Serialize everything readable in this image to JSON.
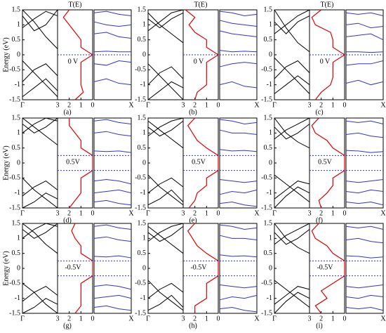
{
  "chart_data": [
    {
      "type": "band-transmission",
      "title": "T(E)",
      "ylabel": "Energy (eV)",
      "label": "(a)",
      "bias": "0 V",
      "bias_levels": [
        0
      ],
      "k_left": "Γ",
      "k_right": "X",
      "ylim": [
        -1.5,
        1.5
      ],
      "yticks": [
        -1.5,
        -1,
        -0.5,
        0,
        0.5,
        1,
        1.5
      ],
      "xlim": [
        3,
        0
      ],
      "xticks": [
        3,
        2,
        1,
        0
      ],
      "left_bands": [
        [
          1.5,
          1.1,
          0.6,
          0.2
        ],
        [
          0.9,
          1.2,
          1.45,
          1.3
        ],
        [
          -0.2,
          -0.6,
          -1.0,
          -1.4
        ],
        [
          -0.9,
          -0.5,
          -0.3,
          -0.7
        ],
        [
          -1.4,
          -1.1,
          -0.8,
          -1.2
        ],
        [
          1.3,
          0.8,
          1.0,
          1.5
        ]
      ],
      "energy": [
        -1.5,
        -1.25,
        -1,
        -0.75,
        -0.5,
        -0.25,
        0,
        0.25,
        0.5,
        0.75,
        1,
        1.25,
        1.5
      ],
      "transmission": [
        1.5,
        0.8,
        1,
        1,
        1,
        1,
        0,
        1,
        1,
        1.5,
        2,
        2.5,
        2
      ],
      "right_bands": [
        [
          1.4,
          1.45,
          1.35,
          1.3
        ],
        [
          1.1,
          1.0,
          0.95,
          1.0
        ],
        [
          0.7,
          0.75,
          0.6,
          0.55
        ],
        [
          0.1,
          0.12,
          0.1,
          0.1
        ],
        [
          -0.3,
          -0.35,
          -0.2,
          -0.25
        ],
        [
          -0.9,
          -0.8,
          -0.95,
          -1.0
        ]
      ]
    },
    {
      "type": "band-transmission",
      "title": "T(E)",
      "label": "(b)",
      "bias": "0 V",
      "bias_levels": [
        0
      ],
      "k_left": "Γ",
      "k_right": "X",
      "ylim": [
        -1.5,
        1.5
      ],
      "yticks": [
        -1.5,
        -1,
        -0.5,
        0,
        0.5,
        1,
        1.5
      ],
      "xlim": [
        3,
        0
      ],
      "xticks": [
        3,
        2,
        1,
        0
      ],
      "left_bands": [
        [
          1.4,
          1.0,
          0.7,
          0.4
        ],
        [
          0.8,
          1.1,
          1.4,
          1.5
        ],
        [
          -0.3,
          -0.7,
          -1.1,
          -1.5
        ],
        [
          -1.0,
          -0.6,
          -0.4,
          -0.8
        ],
        [
          -1.5,
          -1.2,
          -0.9,
          -1.1
        ],
        [
          1.2,
          0.9,
          1.2,
          1.4
        ]
      ],
      "energy": [
        -1.5,
        -1.25,
        -1,
        -0.75,
        -0.5,
        -0.25,
        0,
        0.25,
        0.5,
        0.75,
        1,
        1.25,
        1.5
      ],
      "transmission": [
        2,
        1.8,
        1,
        1,
        1,
        1,
        0,
        1,
        1,
        2,
        2.5,
        2,
        2.8
      ],
      "right_bands": [
        [
          1.45,
          1.4,
          1.3,
          1.35
        ],
        [
          1.15,
          1.05,
          1.0,
          0.95
        ],
        [
          0.8,
          0.7,
          0.65,
          0.6
        ],
        [
          0.15,
          0.1,
          0.12,
          0.1
        ],
        [
          -0.4,
          -0.3,
          -0.25,
          -0.3
        ],
        [
          -1.0,
          -0.9,
          -1.05,
          -1.1
        ]
      ]
    },
    {
      "type": "band-transmission",
      "title": "T(E)",
      "label": "(c)",
      "bias": "0 V",
      "bias_levels": [
        0
      ],
      "k_left": "Γ",
      "k_right": "X",
      "ylim": [
        -1.5,
        1.5
      ],
      "yticks": [
        -1.5,
        -1,
        -0.5,
        0,
        0.5,
        1,
        1.5
      ],
      "xlim": [
        3,
        0
      ],
      "xticks": [
        3,
        2,
        1,
        0
      ],
      "left_bands": [
        [
          1.5,
          0.9,
          0.4,
          0.1
        ],
        [
          0.7,
          1.0,
          1.3,
          1.5
        ],
        [
          -0.1,
          -0.5,
          -0.9,
          -1.3
        ],
        [
          -0.8,
          -0.4,
          -0.2,
          -0.6
        ],
        [
          -1.3,
          -1.0,
          -0.7,
          -1.0
        ],
        [
          1.1,
          0.7,
          1.1,
          1.3
        ]
      ],
      "energy": [
        -1.5,
        -1.25,
        -1,
        -0.75,
        -0.5,
        -0.25,
        0,
        0.25,
        0.5,
        0.75,
        1,
        1.25,
        1.5
      ],
      "transmission": [
        2.5,
        2,
        1.2,
        1,
        1,
        1,
        0,
        1,
        1,
        1.2,
        2.5,
        2.8,
        2
      ],
      "right_bands": [
        [
          1.4,
          1.35,
          1.4,
          1.3
        ],
        [
          1.0,
          1.05,
          0.9,
          0.95
        ],
        [
          0.6,
          0.65,
          0.7,
          0.5
        ],
        [
          0.1,
          0.1,
          0.08,
          0.1
        ],
        [
          -0.35,
          -0.3,
          -0.3,
          -0.2
        ],
        [
          -0.95,
          -0.85,
          -1.0,
          -0.9
        ]
      ]
    },
    {
      "type": "band-transmission",
      "ylabel": "Energy (eV)",
      "label": "(d)",
      "bias": "0.5V",
      "bias_levels": [
        0.25,
        -0.25
      ],
      "k_left": "Γ",
      "k_right": "X",
      "ylim": [
        -1.5,
        1.5
      ],
      "yticks": [
        -1.5,
        -1,
        -0.5,
        0,
        0.5,
        1,
        1.5
      ],
      "xlim": [
        3,
        0
      ],
      "xticks": [
        3,
        2,
        1,
        0
      ],
      "left_bands": [
        [
          1.5,
          1.2,
          0.9,
          0.6
        ],
        [
          1.0,
          1.3,
          1.5,
          1.4
        ],
        [
          -0.5,
          -0.9,
          -1.2,
          -1.5
        ],
        [
          -1.1,
          -0.8,
          -0.6,
          -0.9
        ],
        [
          -1.5,
          -1.3,
          -1.0,
          -1.2
        ],
        [
          1.3,
          1.0,
          1.2,
          1.5
        ]
      ],
      "energy": [
        -1.5,
        -1.25,
        -1,
        -0.75,
        -0.5,
        -0.25,
        0,
        0.25,
        0.5,
        0.75,
        1,
        1.25,
        1.5
      ],
      "transmission": [
        2,
        1.5,
        1,
        1,
        1,
        0,
        0,
        0,
        1,
        1,
        1.5,
        2,
        2
      ],
      "right_bands": [
        [
          1.4,
          1.45,
          1.35,
          1.3
        ],
        [
          1.0,
          1.05,
          0.95,
          0.9
        ],
        [
          0.4,
          0.38,
          0.4,
          0.35
        ],
        [
          -0.6,
          -0.55,
          -0.6,
          -0.7
        ],
        [
          -1.0,
          -0.95,
          -0.9,
          -1.0
        ],
        [
          -1.3,
          -1.25,
          -1.35,
          -1.4
        ]
      ]
    },
    {
      "type": "band-transmission",
      "label": "(e)",
      "bias": "0.5V",
      "bias_levels": [
        0.25,
        -0.25
      ],
      "k_left": "Γ",
      "k_right": "X",
      "ylim": [
        -1.5,
        1.5
      ],
      "yticks": [
        -1.5,
        -1,
        -0.5,
        0,
        0.5,
        1,
        1.5
      ],
      "xlim": [
        3,
        0
      ],
      "xticks": [
        3,
        2,
        1,
        0
      ],
      "left_bands": [
        [
          1.4,
          1.1,
          0.8,
          0.5
        ],
        [
          0.9,
          1.2,
          1.4,
          1.5
        ],
        [
          -0.4,
          -0.8,
          -1.1,
          -1.4
        ],
        [
          -1.0,
          -0.7,
          -0.5,
          -0.8
        ],
        [
          -1.4,
          -1.2,
          -0.9,
          -1.3
        ],
        [
          1.2,
          0.9,
          1.1,
          1.4
        ]
      ],
      "energy": [
        -1.5,
        -1.25,
        -1,
        -0.75,
        -0.5,
        -0.25,
        0,
        0.25,
        0.5,
        0.75,
        1,
        1.25,
        1.5
      ],
      "transmission": [
        2.5,
        2,
        1.8,
        1,
        1,
        0,
        0,
        0,
        1,
        1.8,
        2.2,
        2.6,
        2
      ],
      "right_bands": [
        [
          1.45,
          1.4,
          1.3,
          1.35
        ],
        [
          1.1,
          1.0,
          1.0,
          0.95
        ],
        [
          0.45,
          0.4,
          0.42,
          0.38
        ],
        [
          -0.55,
          -0.6,
          -0.65,
          -0.6
        ],
        [
          -1.05,
          -0.95,
          -1.0,
          -0.9
        ],
        [
          -1.35,
          -1.3,
          -1.4,
          -1.45
        ]
      ]
    },
    {
      "type": "band-transmission",
      "label": "(f)",
      "bias": "0.5V",
      "bias_levels": [
        0.25,
        -0.25
      ],
      "k_left": "Γ",
      "k_right": "X",
      "ylim": [
        -1.5,
        1.5
      ],
      "yticks": [
        -1.5,
        -1,
        -0.5,
        0,
        0.5,
        1,
        1.5
      ],
      "xlim": [
        3,
        0
      ],
      "xticks": [
        3,
        2,
        1,
        0
      ],
      "left_bands": [
        [
          1.5,
          1.0,
          0.7,
          0.5
        ],
        [
          0.8,
          1.1,
          1.3,
          1.5
        ],
        [
          -0.4,
          -0.7,
          -1.0,
          -1.3
        ],
        [
          -1.2,
          -0.9,
          -0.6,
          -0.7
        ],
        [
          -1.5,
          -1.1,
          -0.8,
          -1.0
        ],
        [
          1.2,
          0.8,
          1.0,
          1.3
        ]
      ],
      "energy": [
        -1.5,
        -1.25,
        -1,
        -0.75,
        -0.5,
        -0.25,
        0,
        0.25,
        0.5,
        0.75,
        1,
        1.25,
        1.5
      ],
      "transmission": [
        2,
        2.2,
        1.5,
        1,
        1,
        0,
        0,
        0,
        1,
        1.5,
        2.5,
        2.8,
        2.2
      ],
      "right_bands": [
        [
          1.4,
          1.35,
          1.4,
          1.3
        ],
        [
          0.95,
          1.0,
          0.9,
          0.85
        ],
        [
          0.42,
          0.4,
          0.35,
          0.38
        ],
        [
          -0.6,
          -0.65,
          -0.6,
          -0.55
        ],
        [
          -0.95,
          -1.0,
          -0.9,
          -0.95
        ],
        [
          -1.3,
          -1.35,
          -1.3,
          -1.4
        ]
      ]
    },
    {
      "type": "band-transmission",
      "ylabel": "Energy (eV)",
      "label": "(g)",
      "bias": "-0.5V",
      "bias_levels": [
        0.25,
        -0.25
      ],
      "k_left": "Γ",
      "k_right": "X",
      "ylim": [
        -1.5,
        1.5
      ],
      "yticks": [
        -1.5,
        -1,
        -0.5,
        0,
        0.5,
        1,
        1.5
      ],
      "xlim": [
        3,
        0
      ],
      "xticks": [
        3,
        2,
        1,
        0
      ],
      "left_bands": [
        [
          1.5,
          1.2,
          0.8,
          0.5
        ],
        [
          1.0,
          1.3,
          1.5,
          1.4
        ],
        [
          -0.5,
          -0.8,
          -1.2,
          -1.5
        ],
        [
          -1.1,
          -0.8,
          -0.6,
          -0.9
        ],
        [
          -1.5,
          -1.3,
          -1.0,
          -1.2
        ],
        [
          1.3,
          1.0,
          1.2,
          1.5
        ]
      ],
      "energy": [
        -1.5,
        -1.25,
        -1,
        -0.75,
        -0.5,
        -0.25,
        0,
        0.25,
        0.5,
        0.75,
        1,
        1.25,
        1.5
      ],
      "transmission": [
        1.5,
        1,
        1,
        1,
        1,
        0,
        0,
        0,
        1,
        1,
        1.5,
        1.8,
        1.5
      ],
      "right_bands": [
        [
          1.4,
          1.45,
          1.35,
          1.3
        ],
        [
          1.0,
          1.05,
          0.95,
          0.9
        ],
        [
          0.4,
          0.38,
          0.42,
          0.35
        ],
        [
          -0.6,
          -0.55,
          -0.6,
          -0.7
        ],
        [
          -1.0,
          -0.95,
          -0.9,
          -1.0
        ],
        [
          -1.3,
          -1.25,
          -1.35,
          -1.4
        ]
      ]
    },
    {
      "type": "band-transmission",
      "label": "(h)",
      "bias": "-0.5V",
      "bias_levels": [
        0.25,
        -0.25
      ],
      "k_left": "Γ",
      "k_right": "X",
      "ylim": [
        -1.5,
        1.5
      ],
      "yticks": [
        -1.5,
        -1,
        -0.5,
        0,
        0.5,
        1,
        1.5
      ],
      "xlim": [
        3,
        0
      ],
      "xticks": [
        3,
        2,
        1,
        0
      ],
      "left_bands": [
        [
          1.4,
          1.1,
          0.8,
          0.5
        ],
        [
          0.9,
          1.2,
          1.4,
          1.5
        ],
        [
          -0.4,
          -0.8,
          -1.1,
          -1.4
        ],
        [
          -1.0,
          -0.7,
          -0.5,
          -0.8
        ],
        [
          -1.4,
          -1.2,
          -0.9,
          -1.3
        ],
        [
          1.2,
          0.9,
          1.1,
          1.4
        ]
      ],
      "energy": [
        -1.5,
        -1.25,
        -1,
        -0.75,
        -0.5,
        -0.25,
        0,
        0.25,
        0.5,
        0.75,
        1,
        1.25,
        1.5
      ],
      "transmission": [
        2,
        2,
        1,
        1,
        1,
        0,
        0,
        0,
        1,
        1.8,
        2.2,
        2.6,
        2
      ],
      "right_bands": [
        [
          1.45,
          1.4,
          1.3,
          1.35
        ],
        [
          1.1,
          1.0,
          1.0,
          0.95
        ],
        [
          0.45,
          0.4,
          0.42,
          0.38
        ],
        [
          -0.55,
          -0.6,
          -0.65,
          -0.6
        ],
        [
          -1.05,
          -0.95,
          -1.0,
          -0.9
        ],
        [
          -1.35,
          -1.3,
          -1.4,
          -1.45
        ]
      ]
    },
    {
      "type": "band-transmission",
      "label": "(i)",
      "bias": "-0.5V",
      "bias_levels": [
        0.25,
        -0.25
      ],
      "k_left": "Γ",
      "k_right": "X",
      "ylim": [
        -1.5,
        1.5
      ],
      "yticks": [
        -1.5,
        -1,
        -0.5,
        0,
        0.5,
        1,
        1.5
      ],
      "xlim": [
        3,
        0
      ],
      "xticks": [
        3,
        2,
        1,
        0
      ],
      "left_bands": [
        [
          1.5,
          1.0,
          0.7,
          0.5
        ],
        [
          0.8,
          1.1,
          1.3,
          1.5
        ],
        [
          -0.4,
          -0.7,
          -1.0,
          -1.3
        ],
        [
          -1.2,
          -0.9,
          -0.6,
          -0.7
        ],
        [
          -1.5,
          -1.1,
          -0.8,
          -1.0
        ],
        [
          1.2,
          0.8,
          1.0,
          1.3
        ]
      ],
      "energy": [
        -1.5,
        -1.25,
        -1,
        -0.75,
        -0.5,
        -0.25,
        0,
        0.25,
        0.5,
        0.75,
        1,
        1.25,
        1.5
      ],
      "transmission": [
        2,
        2.5,
        1.5,
        2,
        1,
        0,
        0,
        0,
        1,
        1.5,
        2.5,
        2.8,
        2.2
      ],
      "right_bands": [
        [
          1.4,
          1.35,
          1.4,
          1.3
        ],
        [
          0.95,
          1.0,
          0.9,
          0.85
        ],
        [
          0.42,
          0.4,
          0.35,
          0.38
        ],
        [
          -0.6,
          -0.65,
          -0.6,
          -0.55
        ],
        [
          -0.95,
          -1.0,
          -0.9,
          -0.95
        ],
        [
          -1.3,
          -1.35,
          -1.3,
          -1.4
        ]
      ]
    }
  ]
}
